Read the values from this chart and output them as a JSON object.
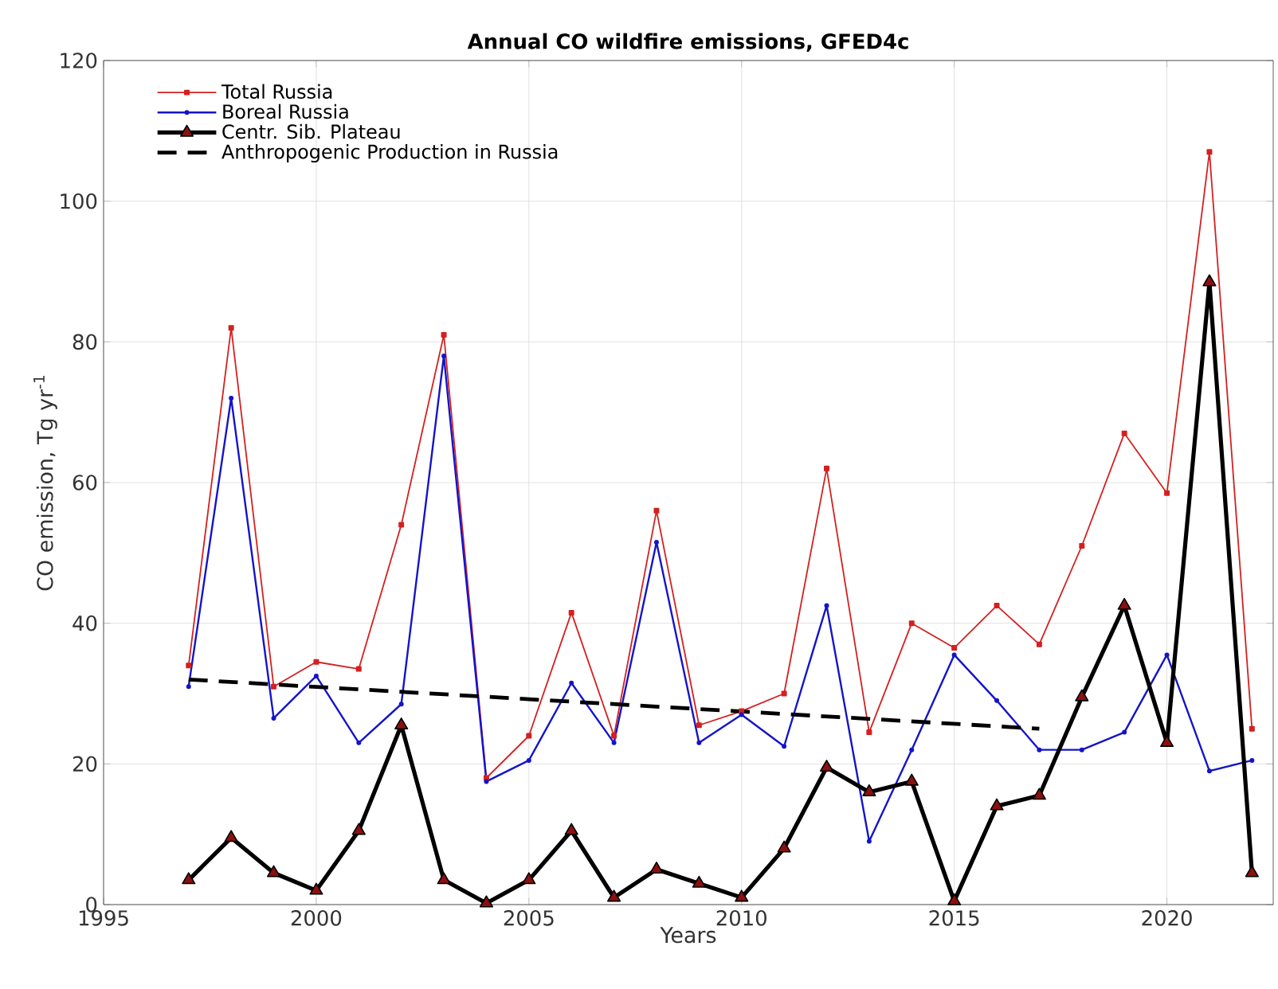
{
  "chart_data": {
    "type": "line",
    "title": "Annual CO wildfire emissions, GFED4c",
    "xlabel": "Years",
    "ylabel": "CO emission, Tg yr$^{-1}$",
    "xlim": [
      1995,
      2022.5
    ],
    "xticks": [
      1995,
      2000,
      2005,
      2010,
      2015,
      2020
    ],
    "ylim": [
      0,
      120
    ],
    "yticks": [
      0,
      20,
      40,
      60,
      80,
      100,
      120
    ],
    "grid": true,
    "legend": "top left",
    "series": [
      {
        "name": "Total Russia",
        "color": "#d42020",
        "marker": "square",
        "line_style": "solid",
        "x": [
          1997,
          1998,
          1999,
          2000,
          2001,
          2002,
          2003,
          2004,
          2005,
          2006,
          2007,
          2008,
          2009,
          2010,
          2011,
          2012,
          2013,
          2014,
          2015,
          2016,
          2017,
          2018,
          2019,
          2020,
          2021,
          2022
        ],
        "values": [
          34,
          82,
          31,
          34.5,
          33.5,
          54,
          81,
          18,
          24,
          41.5,
          24,
          56,
          25.5,
          27.5,
          30,
          62,
          24.5,
          40,
          36.5,
          42.5,
          37,
          51,
          67,
          58.5,
          107,
          25
        ]
      },
      {
        "name": "Boreal Russia",
        "color": "#1414c8",
        "marker": "circle",
        "line_style": "solid",
        "x": [
          1997,
          1998,
          1999,
          2000,
          2001,
          2002,
          2003,
          2004,
          2005,
          2006,
          2007,
          2008,
          2009,
          2010,
          2011,
          2012,
          2013,
          2014,
          2015,
          2016,
          2017,
          2018,
          2019,
          2020,
          2021,
          2022
        ],
        "values": [
          31,
          72,
          26.5,
          32.5,
          23,
          28.5,
          78,
          17.5,
          20.5,
          31.5,
          23,
          51.5,
          23,
          27,
          22.5,
          42.5,
          9,
          22,
          35.5,
          29,
          22,
          22,
          24.5,
          35.5,
          19,
          20.5
        ]
      },
      {
        "name": "Centr. Sib. Plateau",
        "color": "#000000",
        "marker": "triangle",
        "line_style": "solid",
        "x": [
          1997,
          1998,
          1999,
          2000,
          2001,
          2002,
          2003,
          2004,
          2005,
          2006,
          2007,
          2008,
          2009,
          2010,
          2011,
          2012,
          2013,
          2014,
          2015,
          2016,
          2017,
          2018,
          2019,
          2020,
          2021,
          2022
        ],
        "values": [
          3.5,
          9.5,
          4.5,
          2,
          10.5,
          25.5,
          3.5,
          0.2,
          3.5,
          10.5,
          1,
          5,
          3,
          1,
          8,
          19.5,
          16,
          17.5,
          0.5,
          14,
          15.5,
          29.5,
          42.5,
          23,
          88.5,
          4.5
        ]
      },
      {
        "name": "Anthropogenic Production in Russia",
        "color": "#000000",
        "marker": "none",
        "line_style": "dashed",
        "x": [
          1997,
          2017
        ],
        "values": [
          32,
          25
        ]
      }
    ]
  }
}
